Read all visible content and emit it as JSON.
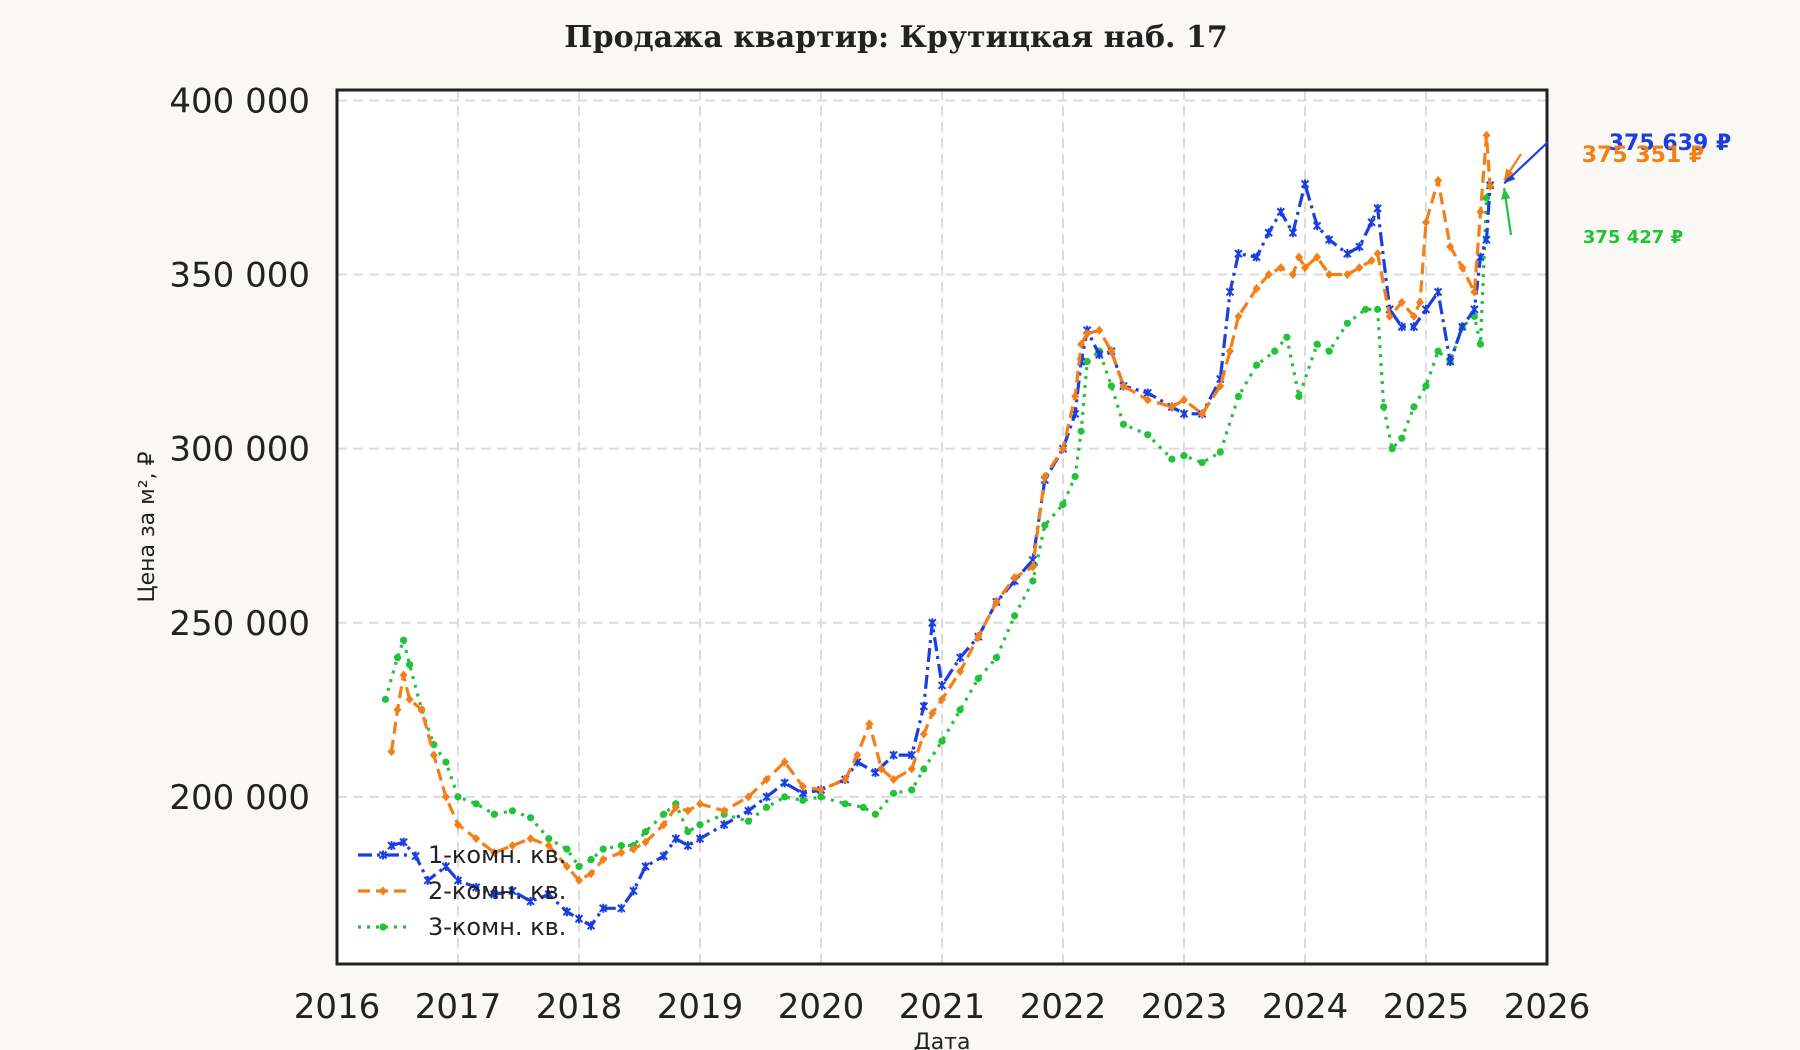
{
  "chart_data": {
    "type": "line",
    "title": "Продажа квартир: Крутицкая наб. 17",
    "xlabel": "Дата",
    "ylabel": "Цена за м², ₽",
    "xlim": [
      2016,
      2026
    ],
    "ylim": [
      152000,
      403000
    ],
    "x_ticks": [
      2016,
      2017,
      2018,
      2019,
      2020,
      2021,
      2022,
      2023,
      2024,
      2025,
      2026
    ],
    "x_tick_labels": [
      "2016",
      "2017",
      "2018",
      "2019",
      "2020",
      "2021",
      "2022",
      "2023",
      "2024",
      "2025",
      "2026"
    ],
    "y_ticks": [
      200000,
      250000,
      300000,
      350000,
      400000
    ],
    "y_tick_labels": [
      "200 000",
      "250 000",
      "300 000",
      "350 000",
      "400 000"
    ],
    "grid": true,
    "legend_position": "bottom-left",
    "series": [
      {
        "name": "1-комн. кв.",
        "color": "#1a3fe0",
        "line_style": "dashdot",
        "marker": "star",
        "x": [
          2016.45,
          2016.55,
          2016.65,
          2016.75,
          2016.9,
          2017.0,
          2017.15,
          2017.3,
          2017.45,
          2017.6,
          2017.75,
          2017.9,
          2018.0,
          2018.1,
          2018.2,
          2018.35,
          2018.45,
          2018.55,
          2018.7,
          2018.8,
          2018.9,
          2019.0,
          2019.2,
          2019.4,
          2019.55,
          2019.7,
          2019.85,
          2020.0,
          2020.2,
          2020.3,
          2020.45,
          2020.6,
          2020.75,
          2020.85,
          2020.92,
          2021.0,
          2021.15,
          2021.3,
          2021.45,
          2021.6,
          2021.75,
          2021.85,
          2022.0,
          2022.1,
          2022.15,
          2022.2,
          2022.3,
          2022.4,
          2022.5,
          2022.7,
          2022.9,
          2023.0,
          2023.15,
          2023.3,
          2023.38,
          2023.45,
          2023.6,
          2023.7,
          2023.8,
          2023.9,
          2024.0,
          2024.1,
          2024.2,
          2024.35,
          2024.45,
          2024.55,
          2024.6,
          2024.7,
          2024.8,
          2024.9,
          2025.0,
          2025.1,
          2025.2,
          2025.3,
          2025.4,
          2025.45,
          2025.5,
          2025.53
        ],
        "y": [
          186000,
          187000,
          183000,
          176000,
          180000,
          176000,
          174000,
          172000,
          173000,
          170000,
          172000,
          167000,
          165000,
          163000,
          168000,
          168000,
          173000,
          180000,
          183000,
          188000,
          186000,
          188000,
          192000,
          196000,
          200000,
          204000,
          201000,
          202000,
          205000,
          210000,
          207000,
          212000,
          212000,
          226000,
          250000,
          232000,
          240000,
          246000,
          256000,
          262000,
          268000,
          291000,
          300000,
          310000,
          325000,
          334000,
          327000,
          328000,
          318000,
          316000,
          312000,
          310000,
          310000,
          320000,
          345000,
          356000,
          355000,
          362000,
          368000,
          362000,
          376000,
          364000,
          360000,
          356000,
          358000,
          365000,
          369000,
          340000,
          335000,
          335000,
          340000,
          345000,
          325000,
          335000,
          340000,
          355000,
          360000,
          375639
        ]
      },
      {
        "name": "2-комн. кв.",
        "color": "#f57f17",
        "line_style": "dashed",
        "marker": "diamond",
        "x": [
          2016.45,
          2016.5,
          2016.55,
          2016.6,
          2016.7,
          2016.8,
          2016.9,
          2017.0,
          2017.15,
          2017.3,
          2017.45,
          2017.6,
          2017.75,
          2017.9,
          2018.0,
          2018.1,
          2018.2,
          2018.35,
          2018.45,
          2018.55,
          2018.7,
          2018.8,
          2018.9,
          2019.0,
          2019.2,
          2019.4,
          2019.55,
          2019.7,
          2019.85,
          2020.0,
          2020.2,
          2020.3,
          2020.4,
          2020.5,
          2020.6,
          2020.75,
          2020.85,
          2020.92,
          2021.0,
          2021.15,
          2021.3,
          2021.45,
          2021.6,
          2021.75,
          2021.85,
          2022.0,
          2022.1,
          2022.15,
          2022.2,
          2022.3,
          2022.4,
          2022.5,
          2022.7,
          2022.9,
          2023.0,
          2023.15,
          2023.3,
          2023.38,
          2023.45,
          2023.6,
          2023.7,
          2023.8,
          2023.9,
          2023.95,
          2024.0,
          2024.1,
          2024.2,
          2024.35,
          2024.45,
          2024.55,
          2024.6,
          2024.7,
          2024.8,
          2024.9,
          2024.95,
          2025.0,
          2025.1,
          2025.2,
          2025.3,
          2025.4,
          2025.45,
          2025.5,
          2025.53
        ],
        "y": [
          213000,
          225000,
          235000,
          228000,
          225000,
          212000,
          200000,
          192000,
          188000,
          184000,
          186000,
          188000,
          186000,
          180000,
          176000,
          178000,
          182000,
          184000,
          185000,
          187000,
          192000,
          197000,
          196000,
          198000,
          196000,
          200000,
          205000,
          210000,
          203000,
          202000,
          205000,
          212000,
          221000,
          208000,
          205000,
          208000,
          218000,
          224000,
          228000,
          236000,
          246000,
          256000,
          263000,
          266000,
          292000,
          300000,
          315000,
          330000,
          333000,
          334000,
          328000,
          318000,
          314000,
          312000,
          314000,
          310000,
          318000,
          328000,
          338000,
          346000,
          350000,
          352000,
          350000,
          355000,
          352000,
          355000,
          350000,
          350000,
          352000,
          354000,
          356000,
          338000,
          342000,
          338000,
          342000,
          365000,
          377000,
          358000,
          352000,
          345000,
          368000,
          390000,
          375351
        ]
      },
      {
        "name": "3-комн. кв.",
        "color": "#22c23a",
        "line_style": "dotted",
        "marker": "circle",
        "x": [
          2016.4,
          2016.5,
          2016.55,
          2016.6,
          2016.7,
          2016.8,
          2016.9,
          2017.0,
          2017.15,
          2017.3,
          2017.45,
          2017.6,
          2017.75,
          2017.9,
          2018.0,
          2018.1,
          2018.2,
          2018.35,
          2018.45,
          2018.55,
          2018.7,
          2018.8,
          2018.9,
          2019.0,
          2019.2,
          2019.4,
          2019.55,
          2019.7,
          2019.85,
          2020.0,
          2020.2,
          2020.35,
          2020.45,
          2020.6,
          2020.75,
          2020.85,
          2021.0,
          2021.15,
          2021.3,
          2021.45,
          2021.6,
          2021.75,
          2021.85,
          2022.0,
          2022.1,
          2022.15,
          2022.2,
          2022.3,
          2022.4,
          2022.5,
          2022.7,
          2022.9,
          2023.0,
          2023.15,
          2023.3,
          2023.45,
          2023.6,
          2023.75,
          2023.85,
          2023.95,
          2024.1,
          2024.2,
          2024.35,
          2024.5,
          2024.6,
          2024.65,
          2024.72,
          2024.8,
          2024.9,
          2025.0,
          2025.1,
          2025.2,
          2025.3,
          2025.4,
          2025.45,
          2025.5,
          2025.53
        ],
        "y": [
          228000,
          240000,
          245000,
          238000,
          225000,
          215000,
          210000,
          200000,
          198000,
          195000,
          196000,
          194000,
          188000,
          185000,
          180000,
          182000,
          185000,
          186000,
          186000,
          190000,
          195000,
          198000,
          190000,
          192000,
          195000,
          193000,
          197000,
          200000,
          199000,
          200000,
          198000,
          197000,
          195000,
          201000,
          202000,
          208000,
          216000,
          225000,
          234000,
          240000,
          252000,
          262000,
          278000,
          284000,
          292000,
          305000,
          325000,
          328000,
          318000,
          307000,
          304000,
          297000,
          298000,
          296000,
          299000,
          315000,
          324000,
          328000,
          332000,
          315000,
          330000,
          328000,
          336000,
          340000,
          340000,
          312000,
          300000,
          303000,
          312000,
          318000,
          328000,
          325000,
          335000,
          338000,
          330000,
          372000,
          375427
        ]
      }
    ],
    "annotations": [
      {
        "text": "375 639 ₽",
        "color": "#1a3fe0"
      },
      {
        "text": "375 351 ₽",
        "color": "#f57f17"
      },
      {
        "text": "375 427 ₽",
        "color": "#22c23a"
      }
    ]
  }
}
